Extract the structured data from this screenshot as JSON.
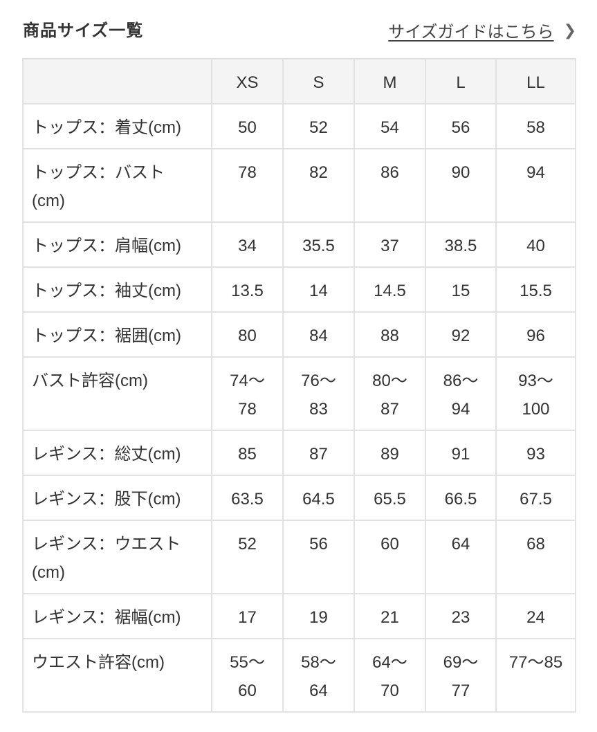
{
  "header": {
    "title": "商品サイズ一覧",
    "guide_link": "サイズガイドはこちら",
    "guide_icon": "chevron-right-icon"
  },
  "table": {
    "sizes": [
      "XS",
      "S",
      "M",
      "L",
      "LL"
    ],
    "rows": [
      {
        "label": "トップス：着丈(cm)",
        "values": [
          "50",
          "52",
          "54",
          "56",
          "58"
        ]
      },
      {
        "label": "トップス：バスト(cm)",
        "values": [
          "78",
          "82",
          "86",
          "90",
          "94"
        ]
      },
      {
        "label": "トップス：肩幅(cm)",
        "values": [
          "34",
          "35.5",
          "37",
          "38.5",
          "40"
        ]
      },
      {
        "label": "トップス：袖丈(cm)",
        "values": [
          "13.5",
          "14",
          "14.5",
          "15",
          "15.5"
        ]
      },
      {
        "label": "トップス：裾囲(cm)",
        "values": [
          "80",
          "84",
          "88",
          "92",
          "96"
        ]
      },
      {
        "label": "バスト許容(cm)",
        "values": [
          "74〜78",
          "76〜83",
          "80〜87",
          "86〜94",
          "93〜100"
        ]
      },
      {
        "label": "レギンス：総丈(cm)",
        "values": [
          "85",
          "87",
          "89",
          "91",
          "93"
        ]
      },
      {
        "label": "レギンス：股下(cm)",
        "values": [
          "63.5",
          "64.5",
          "65.5",
          "66.5",
          "67.5"
        ]
      },
      {
        "label": "レギンス：ウエスト(cm)",
        "values": [
          "52",
          "56",
          "60",
          "64",
          "68"
        ]
      },
      {
        "label": "レギンス：裾幅(cm)",
        "values": [
          "17",
          "19",
          "21",
          "23",
          "24"
        ]
      },
      {
        "label": "ウエスト許容(cm)",
        "values": [
          "55〜60",
          "58〜64",
          "64〜70",
          "69〜77",
          "77〜85"
        ]
      }
    ]
  }
}
